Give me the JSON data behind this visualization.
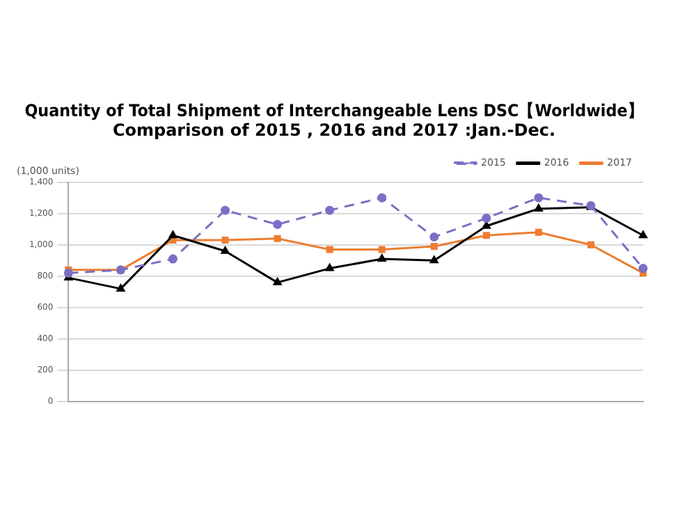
{
  "chart_data": {
    "type": "line",
    "title": "Quantity of Total Shipment of Interchangeable Lens DSC【Worldwide】\nComparison of 2015 , 2016 and 2017 :Jan.-Dec.",
    "ylabel": "(1,000 units)",
    "categories": [
      null,
      null,
      null,
      null,
      null,
      null,
      null,
      null,
      null,
      null,
      null,
      null
    ],
    "series": [
      {
        "name": "2015",
        "color": "#7b6fc4",
        "marker": "circle",
        "line_style": "dashed",
        "values": [
          820,
          840,
          910,
          1220,
          1130,
          1220,
          1300,
          1050,
          1170,
          1300,
          1250,
          850
        ]
      },
      {
        "name": "2016",
        "color": "#000000",
        "marker": "triangle",
        "line_style": "solid",
        "values": [
          790,
          720,
          1060,
          960,
          760,
          850,
          910,
          900,
          1120,
          1230,
          1240,
          1060
        ]
      },
      {
        "name": "2017",
        "color": "#ed7d31",
        "marker": "square",
        "line_style": "solid",
        "values": [
          840,
          840,
          1030,
          1030,
          1040,
          970,
          970,
          990,
          1060,
          1080,
          1000,
          820
        ]
      }
    ],
    "ylim": [
      0,
      1400
    ],
    "yticks": [
      0,
      {
        "value": 200,
        "label": "200"
      },
      {
        "value": 400,
        "label": "400"
      },
      {
        "value": 600,
        "label": "600"
      },
      {
        "value": 800,
        "label": "800"
      },
      {
        "value": 1000,
        "label": "1,000"
      },
      {
        "value": 1200,
        "label": "1,200"
      },
      {
        "value": 1400,
        "label": "1,400"
      }
    ],
    "grid": "y",
    "legend": "top right"
  }
}
